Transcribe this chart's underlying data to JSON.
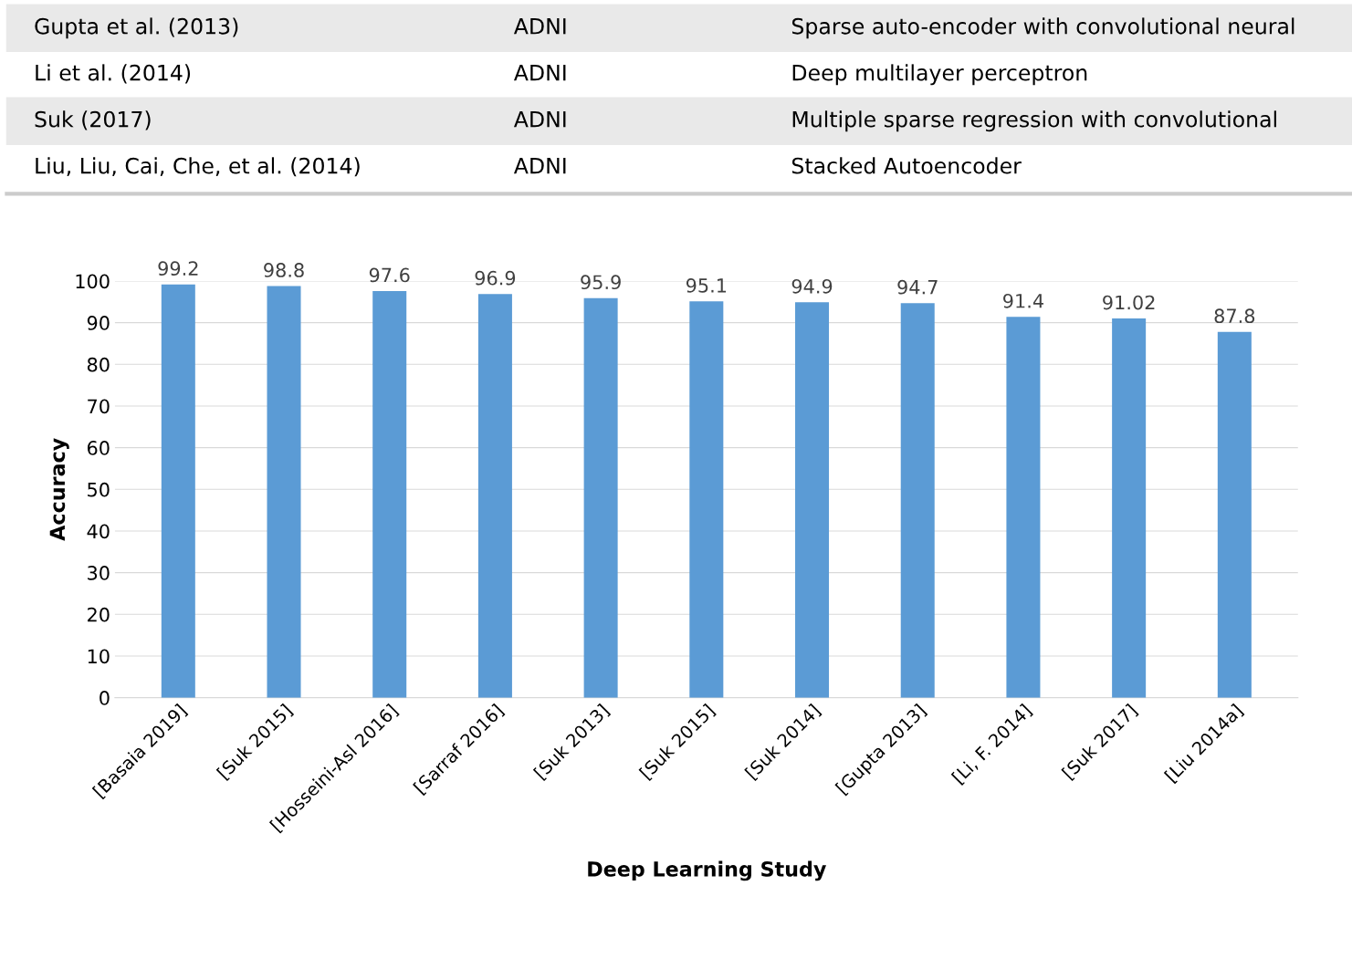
{
  "chart_data": {
    "type": "bar",
    "xlabel": "Deep Learning Study",
    "ylabel": "Accuracy",
    "categories": [
      "[Basaia 2019]",
      "[Suk 2015]",
      "[Hosseini-Asl 2016]",
      "[Sarraf 2016]",
      "[Suk 2013]",
      "[Suk 2015]",
      "[Suk 2014]",
      "[Gupta 2013]",
      "[Li, F. 2014]",
      "[Suk 2017]",
      "[Liu 2014a]"
    ],
    "values": [
      99.2,
      98.8,
      97.6,
      96.9,
      95.9,
      95.1,
      94.9,
      94.7,
      91.4,
      91.02,
      87.8
    ],
    "color": "#5b9bd5",
    "data_labels": true,
    "ylim": [
      0,
      100
    ],
    "yticks": [
      0,
      10,
      20,
      30,
      40,
      50,
      60,
      70,
      80,
      90,
      100
    ],
    "grid": "y",
    "annotations": [
      "Gupta et al. (2013)",
      "ADNI",
      "Sparse auto-encoder with convolutional neural",
      "Li et al. (2014)",
      "ADNI",
      "Deep multilayer perceptron",
      "Suk (2017)",
      "ADNI",
      "Multiple sparse regression with convolutional",
      "Liu, Liu, Cai, Che, et al. (2014)",
      "ADNI",
      "Stacked Autoencoder"
    ]
  }
}
